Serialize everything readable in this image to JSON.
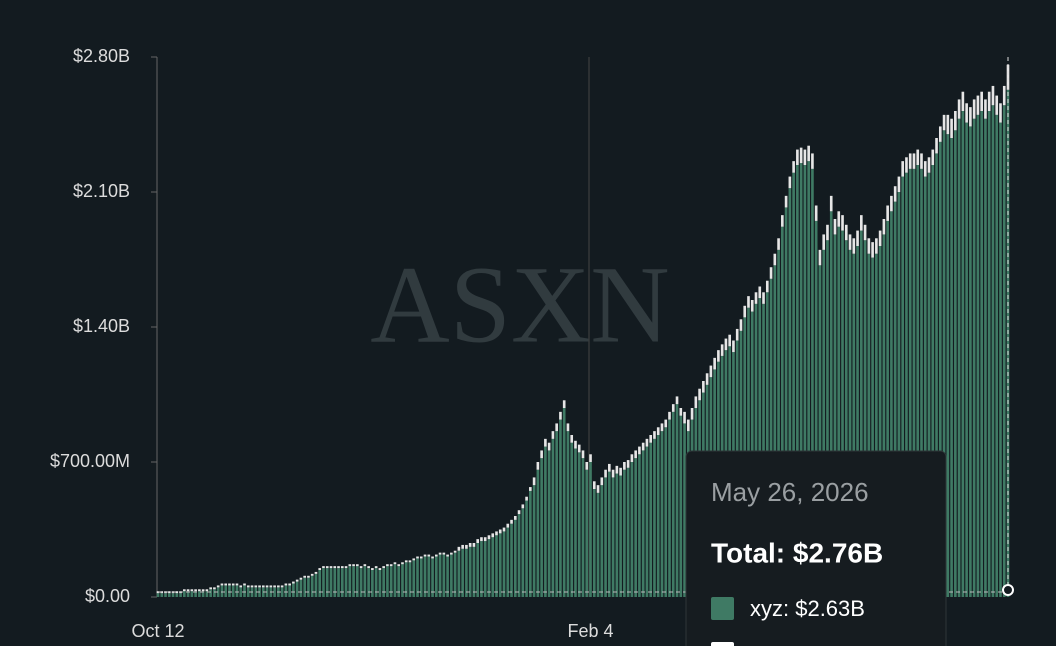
{
  "chart_data": {
    "type": "stacked-bar",
    "watermark": "ASXN",
    "categories": [
      "Oct 12",
      null,
      null,
      null,
      null,
      null,
      null,
      null,
      null,
      null,
      null,
      null,
      null,
      null,
      null,
      null,
      null,
      null,
      null,
      null,
      null,
      null,
      null,
      null,
      null,
      null,
      null,
      null,
      null,
      null,
      null,
      null,
      null,
      null,
      null,
      null,
      null,
      null,
      null,
      null,
      null,
      null,
      null,
      null,
      null,
      null,
      null,
      null,
      null,
      null,
      null,
      null,
      null,
      null,
      null,
      null,
      null,
      null,
      null,
      null,
      null,
      null,
      null,
      null,
      null,
      null,
      null,
      null,
      null,
      null,
      null,
      null,
      null,
      null,
      null,
      null,
      null,
      null,
      null,
      null,
      null,
      null,
      null,
      null,
      null,
      null,
      null,
      null,
      null,
      null,
      null,
      null,
      null,
      null,
      null,
      null,
      null,
      null,
      null,
      null,
      null,
      null,
      null,
      null,
      null,
      null,
      null,
      null,
      null,
      null,
      null,
      null,
      null,
      null,
      null,
      "Feb 4",
      null,
      null,
      null,
      null,
      null,
      null,
      null,
      null,
      null,
      null,
      null,
      null,
      null,
      null,
      null,
      null,
      null,
      null,
      null,
      null,
      null,
      null,
      null,
      null,
      null,
      null,
      null,
      null,
      null,
      null,
      null,
      null,
      null,
      null,
      null,
      null,
      null,
      null,
      null,
      null,
      null,
      null,
      null,
      null,
      null,
      null,
      null,
      null,
      null,
      null,
      null,
      null,
      null,
      null,
      null,
      null,
      null,
      null,
      null,
      null,
      null,
      null,
      null,
      null,
      null,
      null,
      null,
      null,
      null,
      null,
      null,
      null,
      null,
      null,
      null,
      null,
      null,
      null,
      null,
      null,
      null,
      null,
      null,
      null,
      null,
      null,
      null,
      null,
      null,
      null,
      null,
      null,
      null,
      null,
      null,
      null,
      null,
      null,
      null,
      null,
      null,
      null,
      null,
      null,
      null,
      null,
      null,
      null,
      null,
      null,
      null
    ],
    "series": [
      {
        "color": "#3f7a64",
        "values": [
          0.02,
          0.02,
          0.02,
          0.02,
          0.02,
          0.02,
          0.02,
          0.03,
          0.03,
          0.03,
          0.03,
          0.03,
          0.03,
          0.03,
          0.04,
          0.04,
          0.05,
          0.06,
          0.06,
          0.06,
          0.06,
          0.06,
          0.05,
          0.06,
          0.05,
          0.05,
          0.05,
          0.05,
          0.05,
          0.05,
          0.05,
          0.05,
          0.05,
          0.05,
          0.06,
          0.06,
          0.07,
          0.08,
          0.09,
          0.1,
          0.1,
          0.11,
          0.12,
          0.14,
          0.15,
          0.15,
          0.15,
          0.15,
          0.15,
          0.15,
          0.15,
          0.16,
          0.16,
          0.16,
          0.15,
          0.16,
          0.15,
          0.14,
          0.15,
          0.14,
          0.15,
          0.16,
          0.16,
          0.17,
          0.16,
          0.17,
          0.18,
          0.18,
          0.19,
          0.2,
          0.2,
          0.21,
          0.21,
          0.2,
          0.21,
          0.22,
          0.22,
          0.21,
          0.22,
          0.23,
          0.24,
          0.25,
          0.25,
          0.26,
          0.26,
          0.28,
          0.29,
          0.29,
          0.3,
          0.31,
          0.32,
          0.33,
          0.34,
          0.36,
          0.38,
          0.4,
          0.43,
          0.46,
          0.5,
          0.55,
          0.58,
          0.66,
          0.72,
          0.78,
          0.76,
          0.82,
          0.86,
          0.92,
          0.98,
          0.86,
          0.8,
          0.77,
          0.75,
          0.72,
          0.66,
          0.7,
          0.56,
          0.54,
          0.58,
          0.62,
          0.65,
          0.62,
          0.64,
          0.63,
          0.66,
          0.67,
          0.7,
          0.72,
          0.74,
          0.76,
          0.78,
          0.8,
          0.82,
          0.84,
          0.86,
          0.88,
          0.92,
          0.96,
          1.0,
          0.94,
          0.9,
          0.86,
          0.92,
          0.98,
          1.02,
          1.06,
          1.1,
          1.14,
          1.18,
          1.22,
          1.25,
          1.28,
          1.3,
          1.27,
          1.33,
          1.38,
          1.45,
          1.5,
          1.48,
          1.52,
          1.55,
          1.52,
          1.58,
          1.65,
          1.72,
          1.8,
          1.92,
          2.02,
          2.12,
          2.2,
          2.24,
          2.25,
          2.24,
          2.26,
          2.22,
          1.95,
          1.72,
          1.8,
          1.85,
          2.0,
          1.88,
          1.92,
          1.9,
          1.85,
          1.8,
          1.78,
          1.82,
          1.9,
          1.85,
          1.78,
          1.76,
          1.78,
          1.82,
          1.88,
          1.95,
          2.0,
          2.05,
          2.1,
          2.18,
          2.2,
          2.22,
          2.22,
          2.24,
          2.22,
          2.18,
          2.2,
          2.24,
          2.3,
          2.36,
          2.42,
          2.4,
          2.38,
          2.42,
          2.48,
          2.52,
          2.46,
          2.44,
          2.48,
          2.5,
          2.52,
          2.48,
          2.52,
          2.55,
          2.5,
          2.46,
          2.55,
          2.63
        ]
      },
      {
        "color": "#e6e6e6",
        "values": [
          0.01,
          0.01,
          0.01,
          0.01,
          0.01,
          0.01,
          0.01,
          0.01,
          0.01,
          0.01,
          0.01,
          0.01,
          0.01,
          0.01,
          0.01,
          0.01,
          0.01,
          0.01,
          0.01,
          0.01,
          0.01,
          0.01,
          0.01,
          0.01,
          0.01,
          0.01,
          0.01,
          0.01,
          0.01,
          0.01,
          0.01,
          0.01,
          0.01,
          0.01,
          0.01,
          0.01,
          0.01,
          0.01,
          0.01,
          0.01,
          0.01,
          0.01,
          0.01,
          0.01,
          0.01,
          0.01,
          0.01,
          0.01,
          0.01,
          0.01,
          0.01,
          0.01,
          0.01,
          0.01,
          0.01,
          0.01,
          0.01,
          0.01,
          0.01,
          0.01,
          0.01,
          0.01,
          0.01,
          0.01,
          0.01,
          0.01,
          0.01,
          0.01,
          0.01,
          0.01,
          0.01,
          0.01,
          0.01,
          0.01,
          0.01,
          0.01,
          0.01,
          0.01,
          0.01,
          0.01,
          0.02,
          0.02,
          0.02,
          0.02,
          0.02,
          0.02,
          0.02,
          0.02,
          0.02,
          0.02,
          0.02,
          0.02,
          0.02,
          0.02,
          0.02,
          0.02,
          0.02,
          0.02,
          0.02,
          0.02,
          0.04,
          0.04,
          0.04,
          0.04,
          0.04,
          0.04,
          0.04,
          0.04,
          0.04,
          0.04,
          0.04,
          0.04,
          0.04,
          0.04,
          0.04,
          0.04,
          0.04,
          0.04,
          0.04,
          0.04,
          0.04,
          0.04,
          0.04,
          0.04,
          0.04,
          0.04,
          0.04,
          0.04,
          0.04,
          0.04,
          0.04,
          0.04,
          0.04,
          0.04,
          0.04,
          0.04,
          0.04,
          0.04,
          0.04,
          0.04,
          0.06,
          0.06,
          0.06,
          0.06,
          0.06,
          0.06,
          0.06,
          0.06,
          0.06,
          0.06,
          0.06,
          0.06,
          0.06,
          0.06,
          0.06,
          0.06,
          0.06,
          0.06,
          0.06,
          0.06,
          0.06,
          0.06,
          0.06,
          0.06,
          0.06,
          0.06,
          0.06,
          0.06,
          0.06,
          0.06,
          0.08,
          0.08,
          0.08,
          0.08,
          0.08,
          0.08,
          0.08,
          0.08,
          0.08,
          0.08,
          0.08,
          0.08,
          0.08,
          0.08,
          0.08,
          0.08,
          0.08,
          0.08,
          0.08,
          0.08,
          0.08,
          0.08,
          0.08,
          0.08,
          0.08,
          0.08,
          0.08,
          0.08,
          0.08,
          0.08,
          0.08,
          0.08,
          0.08,
          0.08,
          0.08,
          0.08,
          0.08,
          0.08,
          0.08,
          0.08,
          0.1,
          0.1,
          0.1,
          0.1,
          0.1,
          0.1,
          0.1,
          0.1,
          0.1,
          0.1,
          0.1,
          0.1,
          0.1,
          0.1,
          0.1,
          0.1,
          0.13
        ]
      }
    ],
    "ylim": [
      0,
      2.8
    ],
    "yticks": [
      {
        "value": 0,
        "label": "$0.00"
      },
      {
        "value": 0.7,
        "label": "$700.00M"
      },
      {
        "value": 1.4,
        "label": "$1.40B"
      },
      {
        "value": 2.1,
        "label": "$2.10B"
      },
      {
        "value": 2.8,
        "label": "$2.80B"
      }
    ],
    "tooltip": {
      "date": "May 26, 2026",
      "total": "Total: $2.76B",
      "items": [
        "xyz: $2.63B"
      ]
    }
  }
}
